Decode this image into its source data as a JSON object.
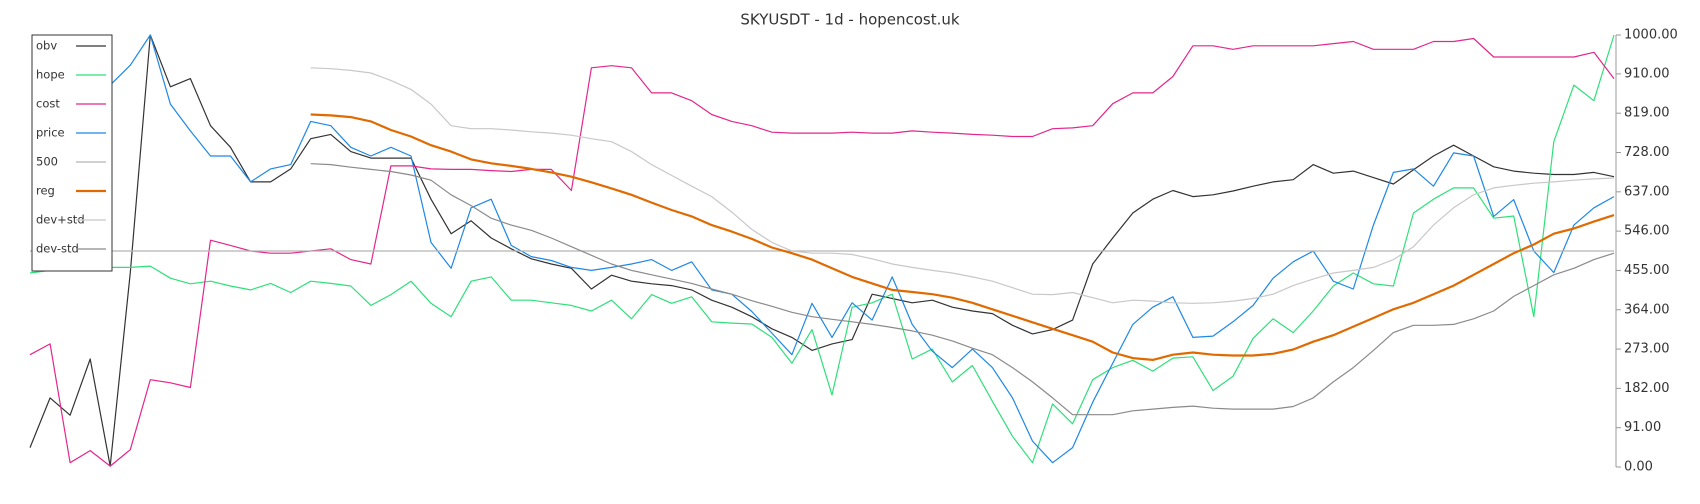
{
  "chart_data": {
    "type": "line",
    "title": "SKYUSDT - 1d - hopencost.uk",
    "ylim": [
      0,
      1000
    ],
    "yticks": [
      {
        "value": 0,
        "label": "0.00"
      },
      {
        "value": 91,
        "label": "91.00"
      },
      {
        "value": 182,
        "label": "182.00"
      },
      {
        "value": 273,
        "label": "273.00"
      },
      {
        "value": 364,
        "label": "364.00"
      },
      {
        "value": 455,
        "label": "455.00"
      },
      {
        "value": 546,
        "label": "546.00"
      },
      {
        "value": 637,
        "label": "637.00"
      },
      {
        "value": 728,
        "label": "728.00"
      },
      {
        "value": 819,
        "label": "819.00"
      },
      {
        "value": 910,
        "label": "910.00"
      },
      {
        "value": 1000,
        "label": "1000.00"
      }
    ],
    "legend": "upper left",
    "series": [
      {
        "name": "obv",
        "color": "#333333",
        "values": [
          45,
          160,
          120,
          250,
          2,
          450,
          1000,
          880,
          899,
          790,
          740,
          660,
          660,
          690,
          760,
          770,
          730,
          715,
          715,
          715,
          620,
          540,
          570,
          530,
          505,
          482,
          470,
          460,
          412,
          444,
          430,
          424,
          420,
          410,
          386,
          370,
          348,
          320,
          300,
          270,
          285,
          295,
          400,
          390,
          380,
          386,
          370,
          361,
          355,
          328,
          308,
          318,
          340,
          470,
          530,
          588,
          620,
          640,
          626,
          630,
          639,
          650,
          660,
          665,
          700,
          680,
          685,
          670,
          655,
          688,
          720,
          745,
          720,
          695,
          685,
          680,
          677,
          677,
          682,
          672
        ]
      },
      {
        "name": "hope",
        "color": "#2ee07a",
        "values": [
          449,
          455,
          458,
          468,
          462,
          462,
          465,
          437,
          424,
          430,
          419,
          410,
          425,
          404,
          430,
          425,
          419,
          374,
          399,
          430,
          379,
          348,
          430,
          440,
          386,
          386,
          380,
          374,
          361,
          386,
          343,
          399,
          379,
          394,
          336,
          333,
          331,
          300,
          240,
          318,
          167,
          370,
          380,
          400,
          250,
          273,
          197,
          235,
          152,
          71,
          10,
          146,
          100,
          202,
          230,
          247,
          222,
          252,
          255,
          177,
          210,
          298,
          343,
          311,
          361,
          419,
          449,
          424,
          419,
          588,
          620,
          646,
          646,
          576,
          581,
          348,
          753,
          884,
          848,
          1000
        ]
      },
      {
        "name": "cost",
        "color": "#e3278b",
        "values": [
          260,
          285,
          10,
          38,
          2,
          40,
          202,
          195,
          184,
          525,
          513,
          500,
          495,
          495,
          500,
          505,
          480,
          470,
          697,
          697,
          690,
          689,
          689,
          686,
          684,
          689,
          689,
          640,
          924,
          929,
          924,
          866,
          866,
          848,
          816,
          800,
          790,
          775,
          773,
          773,
          773,
          775,
          773,
          773,
          778,
          775,
          773,
          770,
          768,
          765,
          765,
          783,
          785,
          790,
          841,
          866,
          866,
          904,
          975,
          975,
          967,
          975,
          975,
          975,
          975,
          980,
          985,
          967,
          967,
          967,
          985,
          985,
          992,
          949,
          949,
          949,
          949,
          949,
          960,
          899
        ]
      },
      {
        "name": "price",
        "color": "#1e88e5",
        "values": [
          null,
          null,
          null,
          null,
          884,
          930,
          1000,
          840,
          778,
          720,
          720,
          660,
          690,
          700,
          800,
          790,
          740,
          720,
          740,
          720,
          520,
          460,
          600,
          620,
          513,
          487,
          478,
          462,
          455,
          462,
          470,
          480,
          455,
          475,
          410,
          400,
          360,
          310,
          260,
          379,
          300,
          380,
          340,
          440,
          330,
          268,
          230,
          273,
          230,
          160,
          60,
          10,
          45,
          150,
          240,
          330,
          370,
          394,
          300,
          303,
          336,
          374,
          437,
          475,
          500,
          430,
          412,
          560,
          682,
          690,
          650,
          727,
          720,
          580,
          619,
          500,
          450,
          560,
          600,
          626
        ]
      },
      {
        "name": "500",
        "color": "#b4b4b4",
        "values": [
          500,
          500,
          500,
          500,
          500,
          500,
          500,
          500,
          500,
          500,
          500,
          500,
          500,
          500,
          500,
          500,
          500,
          500,
          500,
          500,
          500,
          500,
          500,
          500,
          500,
          500,
          500,
          500,
          500,
          500,
          500,
          500,
          500,
          500,
          500,
          500,
          500,
          500,
          500,
          500,
          500,
          500,
          500,
          500,
          500,
          500,
          500,
          500,
          500,
          500,
          500,
          500,
          500,
          500,
          500,
          500,
          500,
          500,
          500,
          500,
          500,
          500,
          500,
          500,
          500,
          500,
          500,
          500,
          500,
          500,
          500,
          500,
          500,
          500,
          500,
          500,
          500,
          500,
          500,
          500
        ]
      },
      {
        "name": "reg",
        "color": "#e06a00",
        "width": 2.2,
        "values": [
          null,
          null,
          null,
          null,
          null,
          null,
          null,
          null,
          null,
          null,
          null,
          null,
          null,
          null,
          816,
          814,
          810,
          800,
          780,
          765,
          745,
          730,
          712,
          703,
          697,
          690,
          682,
          672,
          659,
          645,
          630,
          612,
          595,
          580,
          560,
          545,
          528,
          508,
          495,
          480,
          460,
          440,
          425,
          410,
          405,
          400,
          392,
          380,
          365,
          350,
          335,
          320,
          305,
          290,
          265,
          252,
          248,
          260,
          265,
          260,
          258,
          258,
          262,
          272,
          290,
          305,
          325,
          345,
          365,
          380,
          400,
          420,
          445,
          470,
          495,
          515,
          540,
          552,
          568,
          583
        ]
      },
      {
        "name": "dev+std",
        "color": "#c8c8c8",
        "values": [
          null,
          null,
          null,
          null,
          null,
          null,
          null,
          null,
          null,
          null,
          null,
          null,
          null,
          null,
          924,
          922,
          918,
          912,
          895,
          874,
          840,
          790,
          783,
          783,
          780,
          776,
          773,
          768,
          760,
          753,
          730,
          700,
          675,
          650,
          626,
          590,
          550,
          520,
          500,
          495,
          495,
          492,
          482,
          470,
          462,
          455,
          449,
          440,
          430,
          415,
          400,
          399,
          404,
          392,
          380,
          386,
          384,
          380,
          379,
          380,
          384,
          390,
          400,
          420,
          435,
          449,
          455,
          462,
          480,
          510,
          560,
          600,
          630,
          646,
          652,
          657,
          660,
          664,
          667,
          669
        ]
      },
      {
        "name": "dev-std",
        "color": "#8a8a8a",
        "values": [
          null,
          null,
          null,
          null,
          null,
          null,
          null,
          null,
          null,
          null,
          null,
          null,
          null,
          null,
          702,
          700,
          694,
          689,
          684,
          676,
          664,
          630,
          605,
          576,
          560,
          548,
          530,
          510,
          490,
          470,
          455,
          445,
          435,
          425,
          412,
          400,
          385,
          372,
          358,
          348,
          342,
          336,
          330,
          323,
          315,
          305,
          292,
          275,
          260,
          230,
          197,
          160,
          121,
          121,
          121,
          130,
          134,
          138,
          141,
          136,
          134,
          134,
          134,
          140,
          160,
          197,
          230,
          270,
          311,
          328,
          328,
          330,
          343,
          361,
          395,
          420,
          445,
          460,
          480,
          495
        ]
      }
    ]
  }
}
